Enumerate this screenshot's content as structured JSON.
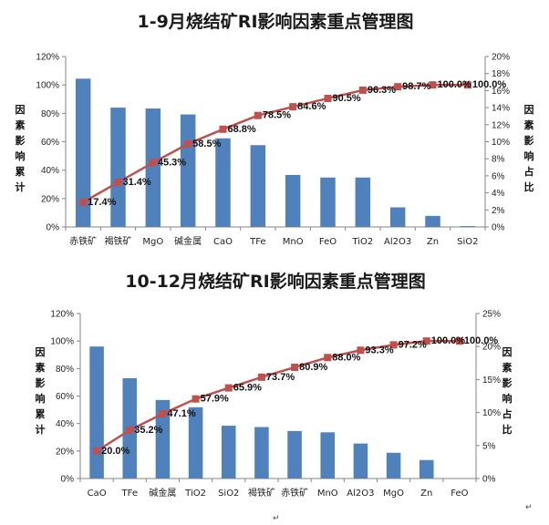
{
  "colors": {
    "bar": "#4f81bd",
    "line": "#c0504d",
    "marker": "#c0504d",
    "axis": "#868686"
  },
  "chart_data": [
    {
      "type": "bar",
      "title": "1-9月烧结矿RI影响因素重点管理图",
      "categories": [
        "赤铁矿",
        "褐铁矿",
        "MgO",
        "碱金属",
        "CaO",
        "TFe",
        "MnO",
        "FeO",
        "TiO2",
        "Al2O3",
        "Zn",
        "SiO2"
      ],
      "series": [
        {
          "values": [
            17.4,
            14.0,
            13.9,
            13.2,
            10.4,
            9.6,
            6.1,
            5.8,
            5.8,
            2.3,
            1.3,
            0.1
          ]
        },
        {
          "axis": "left",
          "values": [
            17.4,
            31.4,
            45.3,
            58.5,
            68.8,
            78.5,
            84.6,
            90.5,
            96.3,
            98.7,
            100.0,
            100.0
          ]
        }
      ],
      "data_labels": [
        "17.4%",
        "31.4%",
        "45.3%",
        "58.5%",
        "68.8%",
        "78.5%",
        "84.6%",
        "90.5%",
        "96.3%",
        "98.7%",
        "100.0%",
        "100.0%"
      ],
      "left_ticks": [
        "0%",
        "20%",
        "40%",
        "60%",
        "80%",
        "100%",
        "120%"
      ],
      "right_ticks": [
        "0%",
        "2%",
        "4%",
        "6%",
        "8%",
        "10%",
        "12%",
        "14%",
        "16%",
        "18%",
        "20%"
      ],
      "ylabel": "因素影响累计",
      "y2label": "因素影响占比",
      "ylim": [
        0,
        120
      ],
      "y2lim": [
        0,
        20
      ],
      "grid": false
    },
    {
      "type": "bar",
      "title": "10-12月烧结矿RI影响因素重点管理图",
      "categories": [
        "CaO",
        "TFe",
        "碱金属",
        "TiO2",
        "SiO2",
        "褐铁矿",
        "赤铁矿",
        "MnO",
        "Al2O3",
        "MgO",
        "Zn",
        "FeO"
      ],
      "series": [
        {
          "values": [
            20.0,
            15.2,
            11.9,
            10.8,
            8.0,
            7.8,
            7.2,
            7.0,
            5.3,
            3.9,
            2.8,
            0.0
          ]
        },
        {
          "axis": "left",
          "values": [
            20.0,
            35.2,
            47.1,
            57.9,
            65.9,
            73.7,
            80.9,
            88.0,
            93.3,
            97.2,
            100.0,
            100.0
          ]
        }
      ],
      "data_labels": [
        "20.0%",
        "35.2%",
        "47.1%",
        "57.9%",
        "65.9%",
        "73.7%",
        "80.9%",
        "88.0%",
        "93.3%",
        "97.2%",
        "100.0%",
        "100.0%"
      ],
      "left_ticks": [
        "0%",
        "20%",
        "40%",
        "60%",
        "80%",
        "100%",
        "120%"
      ],
      "right_ticks": [
        "0%",
        "5%",
        "10%",
        "15%",
        "20%",
        "25%"
      ],
      "ylabel": "因素影响累计",
      "y2label": "因素影响占比",
      "ylim": [
        0,
        120
      ],
      "y2lim": [
        0,
        25
      ],
      "grid": false
    }
  ],
  "return_marks": [
    "↵",
    "↵"
  ]
}
